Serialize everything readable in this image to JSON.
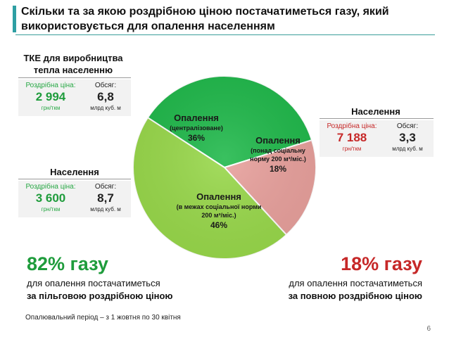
{
  "title": "Скільки та за якою роздрібною ціною постачатиметься газу, який використовується для опалення населенням",
  "boxes": {
    "tke": {
      "title": "ТКЕ для виробництва тепла населенню",
      "price_label": "Роздрібна ціна:",
      "price": "2 994",
      "price_unit": "грн/ткм",
      "volume_label": "Обсяг:",
      "volume": "6,8",
      "volume_unit": "млрд куб. м"
    },
    "pop_left": {
      "title": "Населення",
      "price_label": "Роздрібна ціна:",
      "price": "3 600",
      "price_unit": "грн/ткм",
      "volume_label": "Обсяг:",
      "volume": "8,7",
      "volume_unit": "млрд куб. м"
    },
    "pop_right": {
      "title": "Населення",
      "price_label": "Роздрібна ціна:",
      "price": "7 188",
      "price_unit": "грн/ткм",
      "volume_label": "Обсяг:",
      "volume": "3,3",
      "volume_unit": "млрд куб. м"
    }
  },
  "chart_data": {
    "type": "pie",
    "slices": [
      {
        "name": "Опалення",
        "sub": "(централізоване)",
        "label": "36%",
        "value": 36,
        "color": "#1fb84a"
      },
      {
        "name": "Опалення",
        "sub": "(понад соціальну норму 200 м³/міс.)",
        "label": "18%",
        "value": 18,
        "color": "#e8a09c"
      },
      {
        "name": "Опалення",
        "sub": "(в межах соціальної норми 200 м³/міс.)",
        "label": "46%",
        "value": 46,
        "color": "#98d84a"
      }
    ]
  },
  "summary": {
    "left": {
      "big": "82% газу",
      "line1": "для опалення постачатиметься",
      "line2": "за пільговою роздрібною ціною",
      "color": "#1f9c3c"
    },
    "right": {
      "big": "18% газу",
      "line1": "для опалення постачатиметься",
      "line2": "за повною роздрібною ціною",
      "color": "#c62828"
    }
  },
  "footnote": "Опалювальний період – з 1 жовтня по 30 квітня",
  "page_number": "6"
}
